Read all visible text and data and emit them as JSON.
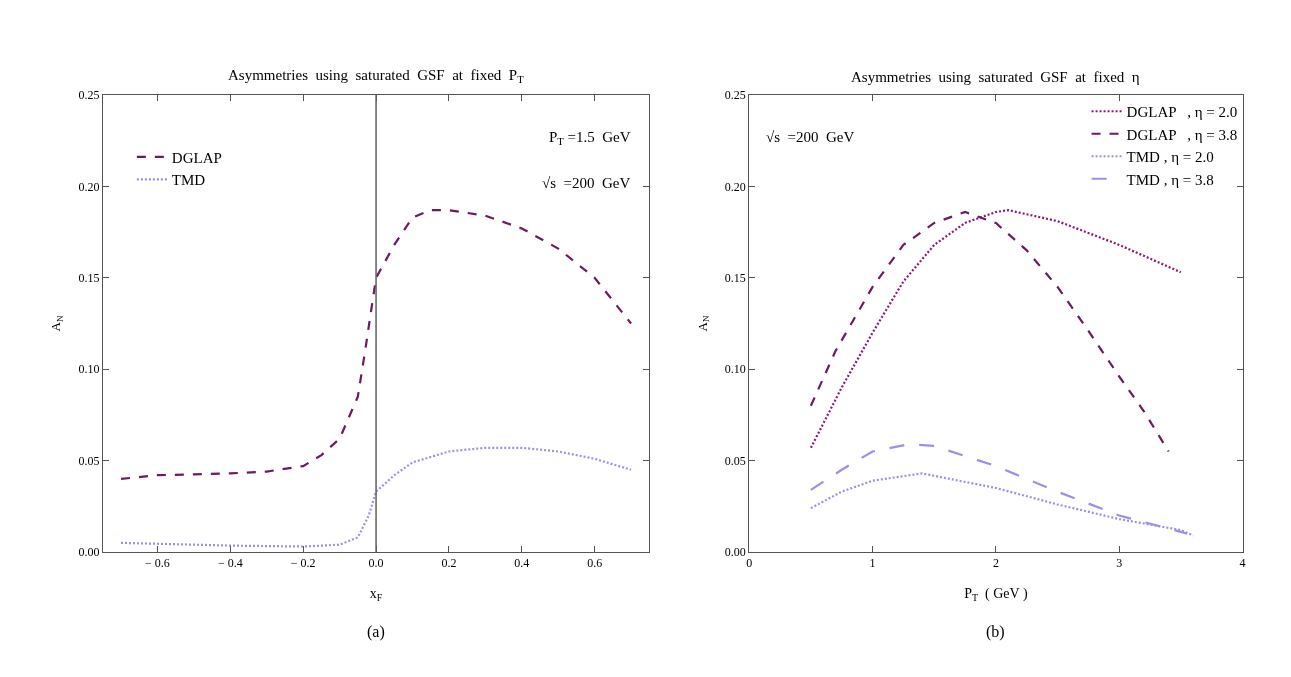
{
  "chart_data": [
    {
      "type": "line",
      "title": "Asymmetries  using  saturated  GSF  at  fixed  P$_{T}$",
      "xlabel": "x$_{F}$",
      "ylabel": "A$_{N}$",
      "xlim": [
        -0.75,
        0.75
      ],
      "xticks": [
        {
          "value": -0.6,
          "label": "− 0.6"
        },
        {
          "value": -0.4,
          "label": "− 0.4"
        },
        {
          "value": -0.2,
          "label": "− 0.2"
        },
        {
          "value": 0,
          "label": "0.0"
        },
        0.2,
        0.4,
        0.6
      ],
      "ylim": [
        0,
        0.25
      ],
      "yticks": [
        {
          "value": 0,
          "label": "0.00"
        },
        0.05,
        {
          "value": 0.1,
          "label": "0.10"
        },
        0.15,
        {
          "value": 0.2,
          "label": "0.20"
        },
        0.25
      ],
      "legend": "top left",
      "marker": "none",
      "ref_lines": [
        {
          "axis": "x",
          "value": 0,
          "color": "#606060",
          "line_style": "solid"
        }
      ],
      "annotations": [
        "P$_{T}$ =1.5  GeV",
        "√s  =200  GeV",
        "(a)"
      ],
      "series": [
        {
          "name": "DGLAP",
          "color": "#6e1a5e",
          "line_style": "dashed",
          "x": [
            -0.7,
            -0.6,
            -0.5,
            -0.4,
            -0.3,
            -0.2,
            -0.15,
            -0.1,
            -0.05,
            -0.03,
            0,
            0.05,
            0.1,
            0.15,
            0.2,
            0.3,
            0.4,
            0.5,
            0.6,
            0.7
          ],
          "values": [
            0.04,
            0.042,
            0.0425,
            0.043,
            0.044,
            0.047,
            0.053,
            0.062,
            0.085,
            0.11,
            0.15,
            0.168,
            0.183,
            0.187,
            0.187,
            0.184,
            0.177,
            0.166,
            0.15,
            0.125
          ]
        },
        {
          "name": "TMD",
          "color": "#9a90e6",
          "line_style": "dotted",
          "x": [
            -0.7,
            -0.6,
            -0.4,
            -0.2,
            -0.1,
            -0.05,
            -0.02,
            0,
            0.05,
            0.1,
            0.2,
            0.3,
            0.4,
            0.5,
            0.6,
            0.7
          ],
          "values": [
            0.005,
            0.0045,
            0.0035,
            0.003,
            0.004,
            0.008,
            0.02,
            0.033,
            0.042,
            0.049,
            0.055,
            0.057,
            0.057,
            0.055,
            0.051,
            0.045
          ]
        }
      ]
    },
    {
      "type": "line",
      "title": "Asymmetries  using  saturated  GSF  at  fixed  η",
      "xlabel": "P$_{T}$  ( GeV )",
      "ylabel": "A$_{N}$",
      "xlim": [
        0,
        4
      ],
      "xticks": [
        0,
        1,
        2,
        3,
        4
      ],
      "ylim": [
        0,
        0.25
      ],
      "yticks": [
        {
          "value": 0,
          "label": "0.00"
        },
        0.05,
        {
          "value": 0.1,
          "label": "0.10"
        },
        0.15,
        {
          "value": 0.2,
          "label": "0.20"
        },
        0.25
      ],
      "legend": "top right",
      "marker": "none",
      "annotations": [
        "√s  =200  GeV",
        "(b)"
      ],
      "series": [
        {
          "name": "DGLAP   , η = 2.0",
          "color": "#8a1a78",
          "line_style": "dotted",
          "x": [
            0.5,
            0.75,
            1.0,
            1.25,
            1.5,
            1.75,
            2.0,
            2.1,
            2.5,
            3.0,
            3.5
          ],
          "values": [
            0.057,
            0.09,
            0.12,
            0.148,
            0.168,
            0.18,
            0.186,
            0.187,
            0.181,
            0.168,
            0.153
          ]
        },
        {
          "name": "DGLAP   , η = 3.8",
          "color": "#6e1a5e",
          "line_style": "dashed",
          "x": [
            0.5,
            0.7,
            1.0,
            1.25,
            1.5,
            1.75,
            2.0,
            2.25,
            2.5,
            2.75,
            3.0,
            3.2,
            3.4
          ],
          "values": [
            0.08,
            0.11,
            0.145,
            0.168,
            0.18,
            0.186,
            0.18,
            0.165,
            0.145,
            0.121,
            0.096,
            0.077,
            0.055
          ]
        },
        {
          "name": "TMD , η = 2.0",
          "color": "#9a90e6",
          "line_style": "dotted",
          "x": [
            0.5,
            0.75,
            1.0,
            1.4,
            2.0,
            2.5,
            3.0,
            3.5,
            3.6
          ],
          "values": [
            0.024,
            0.033,
            0.039,
            0.043,
            0.035,
            0.026,
            0.018,
            0.012,
            0.009
          ]
        },
        {
          "name": "TMD , η = 3.8",
          "color": "#9a90e6",
          "line_style": "longdash",
          "x": [
            0.5,
            0.75,
            1.0,
            1.3,
            1.5,
            2.0,
            2.5,
            3.0,
            3.5,
            3.55
          ],
          "values": [
            0.034,
            0.045,
            0.055,
            0.059,
            0.058,
            0.047,
            0.033,
            0.02,
            0.011,
            0.01
          ]
        }
      ]
    }
  ]
}
